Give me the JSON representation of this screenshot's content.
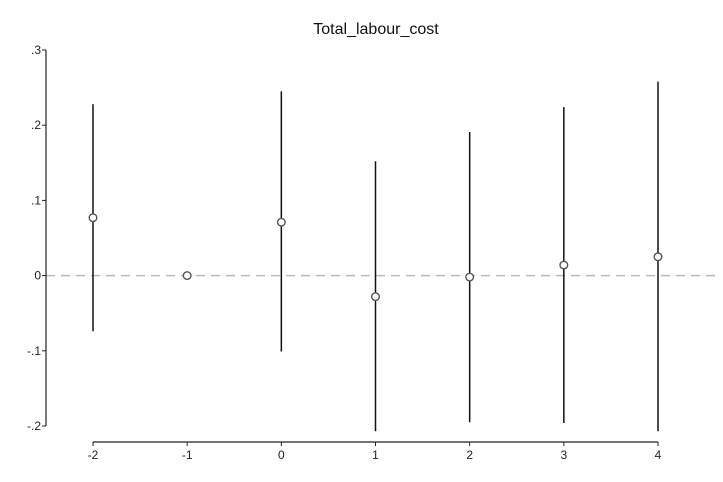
{
  "chart_data": {
    "type": "scatter",
    "title": "Total_labour_cost",
    "xlabel": "",
    "ylabel": "",
    "x_ticks": [
      "-2",
      "-1",
      "0",
      "1",
      "2",
      "3",
      "4"
    ],
    "y_ticks": [
      ".3",
      ".2",
      ".1",
      "0",
      "-.1",
      "-.2"
    ],
    "y_tick_values": [
      0.3,
      0.2,
      0.1,
      0,
      -0.1,
      -0.2
    ],
    "ylim": [
      -0.2,
      0.3
    ],
    "reference_line_y": 0,
    "grid": false,
    "points": [
      {
        "x": -2,
        "y": 0.077,
        "lower": -0.074,
        "upper": 0.228
      },
      {
        "x": -1,
        "y": 0.0,
        "lower": null,
        "upper": null
      },
      {
        "x": 0,
        "y": 0.071,
        "lower": -0.101,
        "upper": 0.245
      },
      {
        "x": 1,
        "y": -0.028,
        "lower": -0.207,
        "upper": 0.152
      },
      {
        "x": 2,
        "y": -0.002,
        "lower": -0.195,
        "upper": 0.191
      },
      {
        "x": 3,
        "y": 0.014,
        "lower": -0.196,
        "upper": 0.224
      },
      {
        "x": 4,
        "y": 0.025,
        "lower": -0.207,
        "upper": 0.258
      }
    ],
    "colors": {
      "marker": "#555555",
      "errorbar": "#111111",
      "reference_line": "#bbbbbb",
      "axis": "#222222"
    }
  }
}
